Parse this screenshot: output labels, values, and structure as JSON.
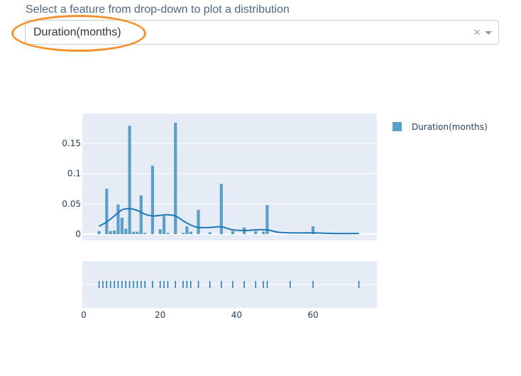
{
  "selector": {
    "prompt": "Select a feature from drop-down to plot a distribution",
    "selected": "Duration(months)",
    "clear_symbol": "×"
  },
  "colors": {
    "bar": "#5b9ec9",
    "line": "#1f77b4",
    "plot_bg": "#e5ecf6",
    "highlight": "#f5922d"
  },
  "chart_data": {
    "type": "bar",
    "subtype": "distplot",
    "legend": {
      "entries": [
        "Duration(months)"
      ],
      "position": "top-right"
    },
    "xlim": [
      0,
      75
    ],
    "ylim": [
      0,
      0.185
    ],
    "xticks": [
      0,
      20,
      40,
      60
    ],
    "xtick_labels": [
      "0",
      "20",
      "40",
      "60"
    ],
    "yticks": [
      0,
      0.05,
      0.1,
      0.15
    ],
    "ytick_labels": [
      "0",
      "0.05",
      "0.1",
      "0.15"
    ],
    "grid": true,
    "histogram": {
      "name": "Duration(months)",
      "bin_width": 1,
      "bins": [
        {
          "x": 4,
          "y": 0.005
        },
        {
          "x": 6,
          "y": 0.075
        },
        {
          "x": 7,
          "y": 0.005
        },
        {
          "x": 8,
          "y": 0.006
        },
        {
          "x": 9,
          "y": 0.049
        },
        {
          "x": 10,
          "y": 0.027
        },
        {
          "x": 11,
          "y": 0.009
        },
        {
          "x": 12,
          "y": 0.179
        },
        {
          "x": 13,
          "y": 0.004
        },
        {
          "x": 14,
          "y": 0.004
        },
        {
          "x": 15,
          "y": 0.064
        },
        {
          "x": 16,
          "y": 0.002
        },
        {
          "x": 18,
          "y": 0.113
        },
        {
          "x": 20,
          "y": 0.008
        },
        {
          "x": 21,
          "y": 0.03
        },
        {
          "x": 22,
          "y": 0.002
        },
        {
          "x": 24,
          "y": 0.184
        },
        {
          "x": 26,
          "y": 0.002
        },
        {
          "x": 27,
          "y": 0.013
        },
        {
          "x": 28,
          "y": 0.004
        },
        {
          "x": 30,
          "y": 0.04
        },
        {
          "x": 33,
          "y": 0.003
        },
        {
          "x": 36,
          "y": 0.083
        },
        {
          "x": 39,
          "y": 0.005
        },
        {
          "x": 42,
          "y": 0.011
        },
        {
          "x": 45,
          "y": 0.005
        },
        {
          "x": 47,
          "y": 0.004
        },
        {
          "x": 48,
          "y": 0.048
        },
        {
          "x": 60,
          "y": 0.013
        }
      ]
    },
    "kde": {
      "x": [
        4,
        6,
        8,
        10,
        12,
        14,
        16,
        18,
        20,
        22,
        24,
        26,
        28,
        30,
        33,
        36,
        39,
        42,
        45,
        48,
        51,
        55,
        60,
        66,
        72
      ],
      "y": [
        0.013,
        0.02,
        0.03,
        0.04,
        0.042,
        0.039,
        0.033,
        0.03,
        0.031,
        0.032,
        0.03,
        0.022,
        0.015,
        0.011,
        0.011,
        0.012,
        0.007,
        0.006,
        0.007,
        0.007,
        0.003,
        0.002,
        0.002,
        0.001,
        0.001
      ]
    },
    "rug": {
      "x": [
        4,
        5,
        6,
        7,
        8,
        9,
        10,
        11,
        12,
        13,
        14,
        15,
        16,
        18,
        20,
        21,
        22,
        24,
        26,
        27,
        28,
        30,
        33,
        36,
        39,
        42,
        45,
        47,
        48,
        54,
        60,
        72
      ]
    }
  }
}
